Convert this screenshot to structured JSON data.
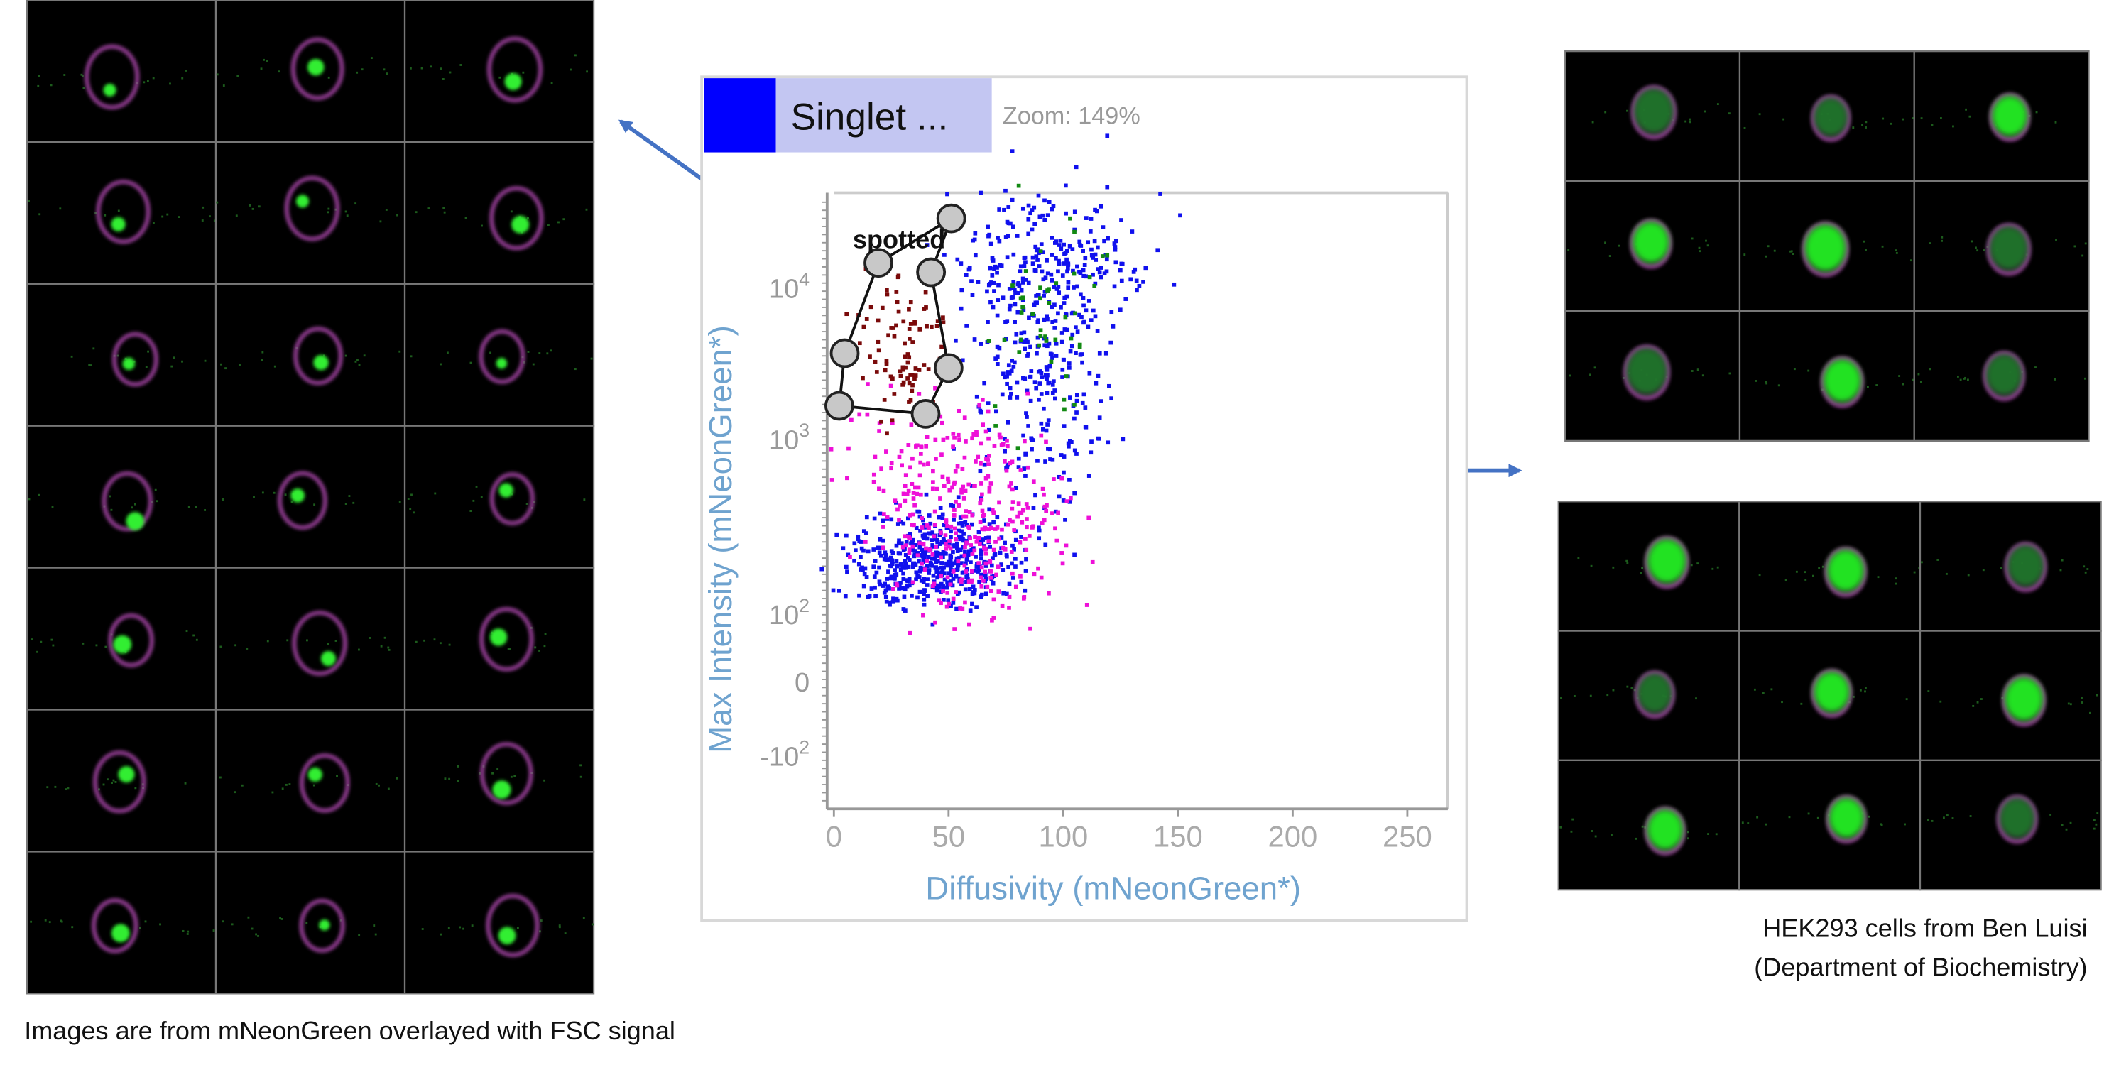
{
  "left_panel": {
    "caption": "Images are from mNeonGreen overlayed with FSC signal"
  },
  "plot": {
    "gate_name": "Singlet ...",
    "zoom": "Zoom: 149%",
    "gate_label": "spotted",
    "y_axis_label": "Max Intensity (mNeonGreen*)",
    "x_axis_label": "Diffusivity (mNeonGreen*)",
    "x_ticks": [
      "0",
      "50",
      "100",
      "150",
      "200",
      "250"
    ],
    "y_ticks": [
      {
        "base": "10",
        "exp": "4"
      },
      {
        "base": "10",
        "exp": "3"
      },
      {
        "base": "10",
        "exp": "2"
      },
      {
        "base": "0"
      },
      {
        "base": "-10",
        "exp": "2"
      }
    ]
  },
  "right_panel": {
    "caption_lines": [
      "HEK293 cells from Ben Luisi",
      "(Department of Biochemistry)"
    ]
  }
}
